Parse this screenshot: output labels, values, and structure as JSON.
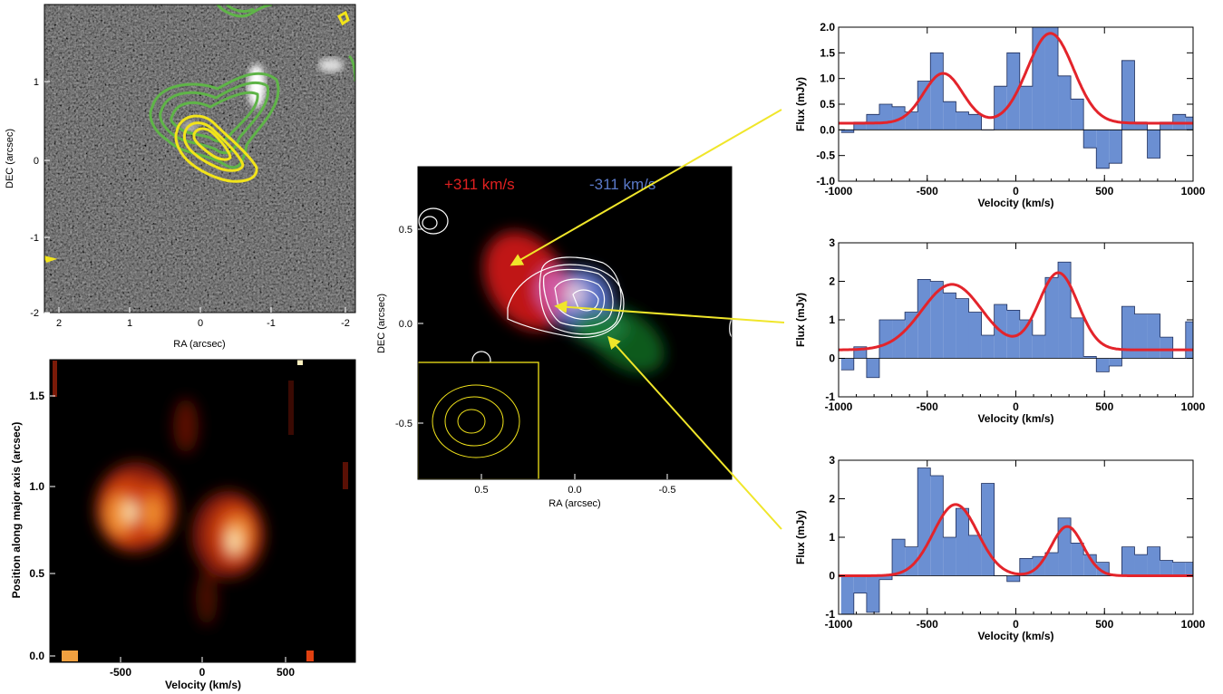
{
  "colors": {
    "contour_green": "#5fb448",
    "contour_yellow": "#f2e41a",
    "hist_fill": "#6b8fd2",
    "fit_red": "#e3242b",
    "arrow_yellow": "#f0e62a",
    "red_channel": "#e02020",
    "blue_channel": "#5a79c8"
  },
  "panel_a": {
    "xlabel": "RA (arcsec)",
    "ylabel": "DEC (arcsec)",
    "xticks": [
      "2",
      "1",
      "0",
      "-1",
      "-2"
    ],
    "yticks": [
      "1",
      "0",
      "-1",
      "-2"
    ]
  },
  "panel_b": {
    "xlabel": "Velocity (km/s)",
    "ylabel": "Position along major axis (arcsec)",
    "xticks": [
      "-500",
      "0",
      "500"
    ],
    "yticks": [
      "0.0",
      "0.5",
      "1.0",
      "1.5"
    ]
  },
  "panel_c": {
    "label_red": "+311 km/s",
    "label_blue": "-311 km/s",
    "xlabel": "RA (arcsec)",
    "ylabel": "DEC (arcsec)",
    "xticks": [
      "0.5",
      "0.0",
      "-0.5"
    ],
    "yticks": [
      "0.5",
      "0.0",
      "-0.5"
    ]
  },
  "chart_data": [
    {
      "type": "bar",
      "panel": "spectrum-1",
      "xlabel": "Velocity (km/s)",
      "ylabel": "Flux (mJy)",
      "xlim": [
        -1000,
        1000
      ],
      "ylim": [
        -1.0,
        2.0
      ],
      "xticks": [
        "-1000",
        "-500",
        "0",
        "500",
        "1000"
      ],
      "yticks": [
        "-1.0",
        "-0.5",
        "0.0",
        "0.5",
        "1.0",
        "1.5",
        "2.0"
      ],
      "bin_width": 72,
      "bin_centers": [
        -950,
        -878,
        -806,
        -734,
        -662,
        -590,
        -518,
        -446,
        -374,
        -302,
        -230,
        -158,
        -86,
        -14,
        58,
        130,
        202,
        274,
        346,
        418,
        490,
        562,
        634,
        706,
        778,
        850,
        922,
        994
      ],
      "flux": [
        -0.05,
        0.15,
        0.3,
        0.5,
        0.45,
        0.35,
        0.95,
        1.5,
        0.55,
        0.35,
        0.3,
        0.0,
        0.85,
        1.5,
        0.85,
        2.0,
        2.3,
        1.05,
        0.6,
        -0.35,
        -0.75,
        -0.65,
        1.35,
        0.15,
        -0.55,
        0.15,
        0.3,
        0.25
      ],
      "fit": {
        "baseline": 0.13,
        "components": [
          {
            "amp": 0.97,
            "center": -410,
            "sigma": 110
          },
          {
            "amp": 1.75,
            "center": 195,
            "sigma": 130
          }
        ]
      }
    },
    {
      "type": "bar",
      "panel": "spectrum-2",
      "xlabel": "Velocity (km/s)",
      "ylabel": "Flux (mJy)",
      "xlim": [
        -1000,
        1000
      ],
      "ylim": [
        -1.0,
        3.0
      ],
      "xticks": [
        "-1000",
        "-500",
        "0",
        "500",
        "1000"
      ],
      "yticks": [
        "-1",
        "0",
        "1",
        "2",
        "3"
      ],
      "bin_width": 72,
      "bin_centers": [
        -950,
        -878,
        -806,
        -734,
        -662,
        -590,
        -518,
        -446,
        -374,
        -302,
        -230,
        -158,
        -86,
        -14,
        58,
        130,
        202,
        274,
        346,
        418,
        490,
        562,
        634,
        706,
        778,
        850,
        922,
        994
      ],
      "flux": [
        -0.3,
        0.3,
        -0.5,
        1.0,
        1.0,
        1.2,
        2.05,
        2.0,
        1.7,
        1.55,
        1.2,
        0.6,
        1.4,
        1.25,
        1.0,
        0.6,
        2.1,
        2.5,
        1.05,
        0.05,
        -0.35,
        -0.2,
        1.35,
        1.15,
        1.15,
        0.55,
        0.0,
        0.95
      ],
      "fit": {
        "baseline": 0.22,
        "components": [
          {
            "amp": 1.7,
            "center": -360,
            "sigma": 170
          },
          {
            "amp": 2.0,
            "center": 240,
            "sigma": 110
          }
        ]
      }
    },
    {
      "type": "bar",
      "panel": "spectrum-3",
      "xlabel": "Velocity (km/s)",
      "ylabel": "Flux (mJy)",
      "xlim": [
        -1000,
        1000
      ],
      "ylim": [
        -1.0,
        3.0
      ],
      "xticks": [
        "-1000",
        "-500",
        "0",
        "500",
        "1000"
      ],
      "yticks": [
        "-1",
        "0",
        "1",
        "2",
        "3"
      ],
      "bin_width": 72,
      "bin_centers": [
        -950,
        -878,
        -806,
        -734,
        -662,
        -590,
        -518,
        -446,
        -374,
        -302,
        -230,
        -158,
        -86,
        -14,
        58,
        130,
        202,
        274,
        346,
        418,
        490,
        562,
        634,
        706,
        778,
        850,
        922,
        994
      ],
      "flux": [
        -1.0,
        -0.45,
        -0.95,
        -0.1,
        0.95,
        0.75,
        2.8,
        2.6,
        1.0,
        1.75,
        1.05,
        2.4,
        0.0,
        -0.15,
        0.45,
        0.5,
        0.6,
        1.5,
        0.85,
        0.55,
        0.35,
        0.0,
        0.75,
        0.55,
        0.75,
        0.4,
        0.35,
        0.35
      ],
      "fit": {
        "baseline": 0.0,
        "components": [
          {
            "amp": 1.85,
            "center": -340,
            "sigma": 125
          },
          {
            "amp": 1.28,
            "center": 290,
            "sigma": 90
          }
        ]
      }
    }
  ]
}
